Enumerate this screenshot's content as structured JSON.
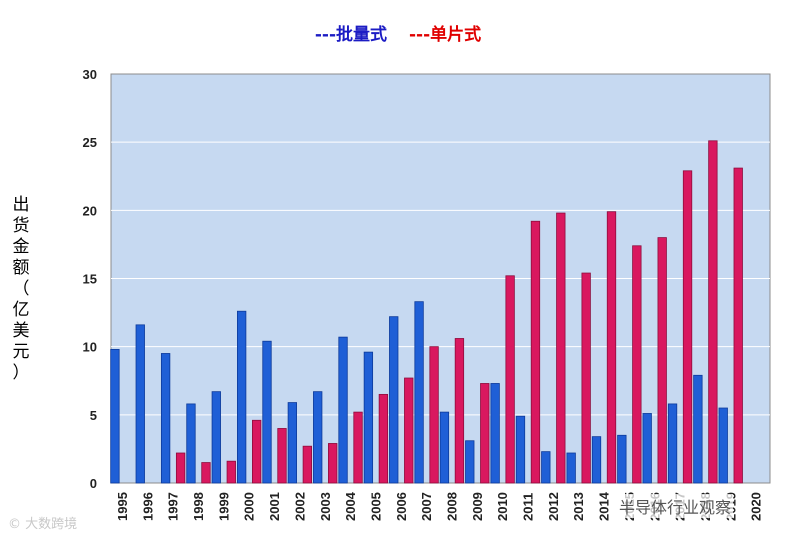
{
  "legend": {
    "series1": "---批量式",
    "series2": "---单片式"
  },
  "ylabel": "出货金额（亿美元）",
  "watermark_left": "© 大数跨境",
  "watermark_right": "半导体行业观察",
  "colors": {
    "plot_bg": "#c6d9f1",
    "series1": "#1f5fd6",
    "series2": "#d9185f",
    "grid": "#ffffff"
  },
  "chart_data": {
    "type": "bar",
    "categories": [
      "1995",
      "1996",
      "1997",
      "1998",
      "1999",
      "2000",
      "2001",
      "2002",
      "2003",
      "2004",
      "2005",
      "2006",
      "2007",
      "2008",
      "2009",
      "2010",
      "2011",
      "2012",
      "2013",
      "2014",
      "2015",
      "2016",
      "2017",
      "2018",
      "2019",
      "2020"
    ],
    "series": [
      {
        "name": "批量式",
        "values": [
          9.8,
          11.6,
          9.5,
          5.8,
          6.7,
          12.6,
          10.4,
          5.9,
          6.7,
          10.7,
          9.6,
          12.2,
          13.3,
          5.2,
          3.1,
          7.3,
          4.9,
          2.3,
          2.2,
          3.4,
          3.5,
          5.1,
          5.8,
          7.9,
          5.5,
          null
        ]
      },
      {
        "name": "单片式",
        "values": [
          null,
          null,
          2.2,
          1.5,
          1.6,
          4.6,
          4.0,
          2.7,
          2.9,
          5.2,
          6.5,
          7.7,
          10.0,
          10.6,
          7.3,
          15.2,
          19.2,
          19.8,
          15.4,
          19.9,
          17.4,
          18.0,
          22.9,
          25.1,
          23.1,
          null
        ]
      }
    ],
    "ylim": [
      0,
      30
    ],
    "yticks": [
      0,
      5,
      10,
      15,
      20,
      25,
      30
    ],
    "grid": true
  }
}
